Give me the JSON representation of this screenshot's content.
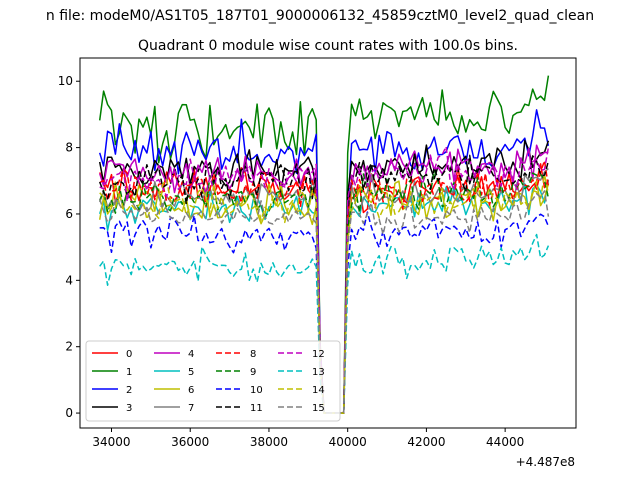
{
  "figure": {
    "suptitle": "n file: modeM0/AS1T05_187T01_9000006132_45859cztM0_level2_quad_clean",
    "title": "Quadrant 0 module wise count rates with 100.0s bins.",
    "x_offset_label": "+4.487e8"
  },
  "chart_data": {
    "type": "line",
    "title": "Quadrant 0 module wise count rates with 100.0s bins.",
    "xlabel": "",
    "ylabel": "",
    "x_offset": 448700000,
    "xlim": [
      33200,
      45800
    ],
    "ylim": [
      -0.45,
      10.7
    ],
    "xticks": [
      34000,
      36000,
      38000,
      40000,
      42000,
      44000
    ],
    "yticks": [
      0,
      2,
      4,
      6,
      8,
      10
    ],
    "x_start": 33700,
    "x_end": 45150,
    "bin": 100,
    "gap": {
      "fall_start": 39300,
      "zero_from": 39400,
      "zero_to": 39900,
      "rise_end": 40000
    },
    "grid": false,
    "legend_position": "lower-left",
    "legend_columns": 4,
    "series": [
      {
        "name": "0",
        "color": "#ff0000",
        "dash": "solid",
        "level_before": 6.8,
        "level_after": 6.7,
        "noise": 0.35
      },
      {
        "name": "1",
        "color": "#008000",
        "dash": "solid",
        "level_before": 8.5,
        "level_after": 8.9,
        "noise": 0.55
      },
      {
        "name": "2",
        "color": "#0000ff",
        "dash": "solid",
        "level_before": 7.9,
        "level_after": 7.9,
        "noise": 0.45
      },
      {
        "name": "3",
        "color": "#000000",
        "dash": "solid",
        "level_before": 7.3,
        "level_after": 7.5,
        "noise": 0.35
      },
      {
        "name": "4",
        "color": "#bf00bf",
        "dash": "solid",
        "level_before": 7.2,
        "level_after": 7.4,
        "noise": 0.35
      },
      {
        "name": "5",
        "color": "#00bfbf",
        "dash": "solid",
        "level_before": 6.2,
        "level_after": 6.3,
        "noise": 0.3
      },
      {
        "name": "6",
        "color": "#bfbf00",
        "dash": "solid",
        "level_before": 6.3,
        "level_after": 6.4,
        "noise": 0.35
      },
      {
        "name": "7",
        "color": "#808080",
        "dash": "solid",
        "level_before": 6.5,
        "level_after": 6.6,
        "noise": 0.3
      },
      {
        "name": "8",
        "color": "#ff0000",
        "dash": "dashed",
        "level_before": 6.8,
        "level_after": 6.8,
        "noise": 0.35
      },
      {
        "name": "9",
        "color": "#008000",
        "dash": "dashed",
        "level_before": 6.5,
        "level_after": 6.7,
        "noise": 0.35
      },
      {
        "name": "10",
        "color": "#0000ff",
        "dash": "dashed",
        "level_before": 5.4,
        "level_after": 5.5,
        "noise": 0.3
      },
      {
        "name": "11",
        "color": "#000000",
        "dash": "dashed",
        "level_before": 7.0,
        "level_after": 7.2,
        "noise": 0.35
      },
      {
        "name": "12",
        "color": "#bf00bf",
        "dash": "dashed",
        "level_before": 7.1,
        "level_after": 7.3,
        "noise": 0.35
      },
      {
        "name": "13",
        "color": "#00bfbf",
        "dash": "dashed",
        "level_before": 4.4,
        "level_after": 4.6,
        "noise": 0.3
      },
      {
        "name": "14",
        "color": "#bfbf00",
        "dash": "dashed",
        "level_before": 6.3,
        "level_after": 6.4,
        "noise": 0.35
      },
      {
        "name": "15",
        "color": "#808080",
        "dash": "dashed",
        "level_before": 5.9,
        "level_after": 5.9,
        "noise": 0.3
      }
    ]
  }
}
